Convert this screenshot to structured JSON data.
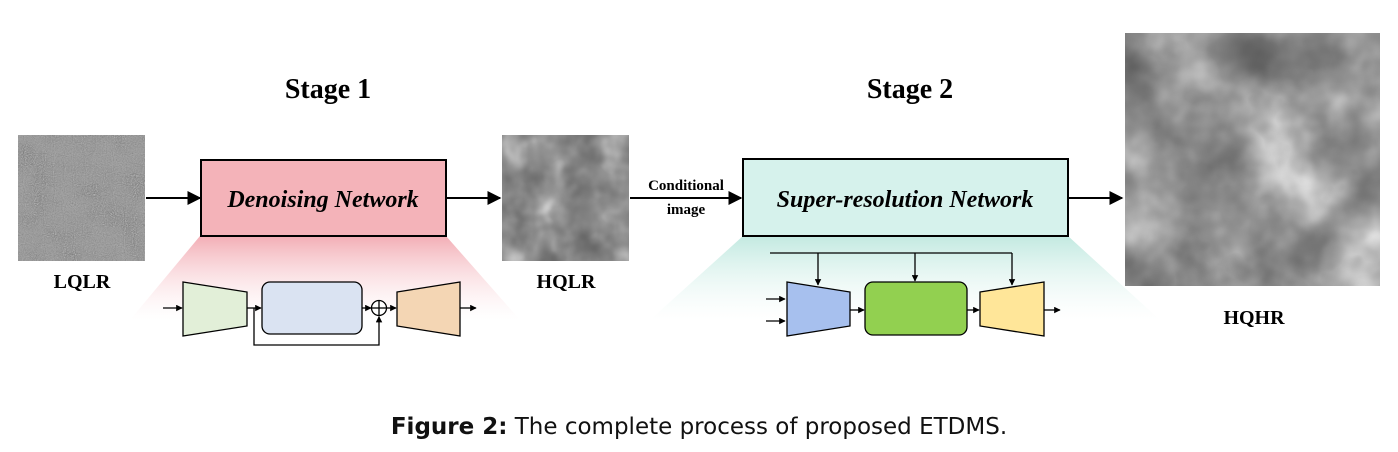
{
  "stage1": {
    "title": "Stage 1",
    "network_label": "Denoising Network"
  },
  "stage2": {
    "title": "Stage 2",
    "network_label": "Super-resolution Network"
  },
  "images": {
    "lqlr_label": "LQLR",
    "hqlr_label": "HQLR",
    "hqhr_label": "HQHR"
  },
  "conditional_label": {
    "line1": "Conditional",
    "line2": "image"
  },
  "caption": {
    "prefix": "Figure 2:",
    "text": "The complete process of proposed ETDMS."
  },
  "colors": {
    "denoise_box": "#f4b3b9",
    "sr_box": "#d6f2ec",
    "encoder_green": "#e2efd8",
    "unet_blue": "#dae3f2",
    "decoder_tan": "#f4d6b4",
    "sr_encoder_blue": "#a7c0ee",
    "sr_core_green": "#92d050",
    "sr_decoder_yellow": "#ffe699"
  }
}
